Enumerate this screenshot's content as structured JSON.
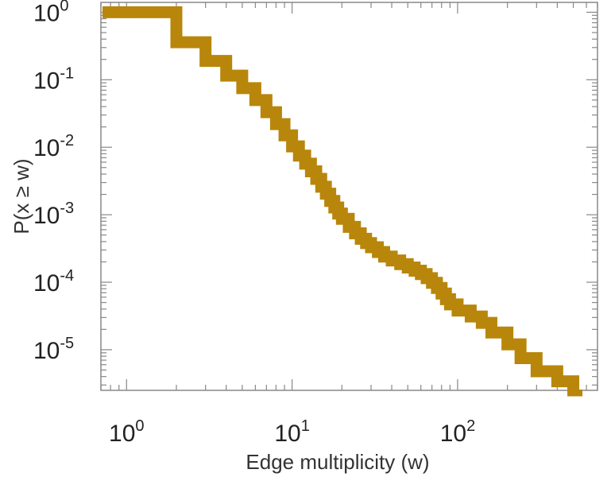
{
  "chart_data": {
    "type": "line",
    "title": "",
    "xlabel": "Edge multiplicity (w)",
    "ylabel": "P(x ≥ w)",
    "xscale": "log",
    "yscale": "log",
    "xlim": [
      0.7,
      700
    ],
    "ylim": [
      2.5e-06,
      1.4
    ],
    "grid": false,
    "legend": "none",
    "x_ticks": [
      {
        "base": "10",
        "exp": "0",
        "value": 1
      },
      {
        "base": "10",
        "exp": "1",
        "value": 10
      },
      {
        "base": "10",
        "exp": "2",
        "value": 100
      }
    ],
    "y_ticks": [
      {
        "base": "10",
        "exp": "0",
        "value": 1
      },
      {
        "base": "10",
        "exp": "-1",
        "value": 0.1
      },
      {
        "base": "10",
        "exp": "-2",
        "value": 0.01
      },
      {
        "base": "10",
        "exp": "-3",
        "value": 0.001
      },
      {
        "base": "10",
        "exp": "-4",
        "value": 0.0001
      },
      {
        "base": "10",
        "exp": "-5",
        "value": 1e-05
      }
    ],
    "series": [
      {
        "color": "#b8860b",
        "x": [
          1,
          2,
          3,
          4,
          5,
          6,
          7,
          8,
          9,
          10,
          11,
          12,
          13,
          14,
          15,
          16,
          17,
          18,
          19,
          20,
          22,
          24,
          26,
          28,
          30,
          33,
          36,
          40,
          45,
          50,
          55,
          60,
          65,
          70,
          75,
          80,
          85,
          90,
          100,
          120,
          140,
          160,
          200,
          240,
          300,
          400,
          500
        ],
        "y": [
          1,
          0.36,
          0.19,
          0.115,
          0.075,
          0.05,
          0.033,
          0.022,
          0.015,
          0.0103,
          0.0075,
          0.0057,
          0.0044,
          0.0034,
          0.0026,
          0.00205,
          0.0016,
          0.00128,
          0.00104,
          0.00087,
          0.00066,
          0.00053,
          0.00044,
          0.00038,
          0.00033,
          0.00028,
          0.00024,
          0.00021,
          0.000185,
          0.000165,
          0.000148,
          0.000132,
          0.000115,
          9.8e-05,
          8.2e-05,
          6.8e-05,
          5.6e-05,
          4.7e-05,
          3.8e-05,
          3.1e-05,
          2.5e-05,
          1.8e-05,
          1.2e-05,
          7.5e-06,
          4.8e-06,
          3.4e-06,
          2.5e-06
        ]
      }
    ]
  }
}
